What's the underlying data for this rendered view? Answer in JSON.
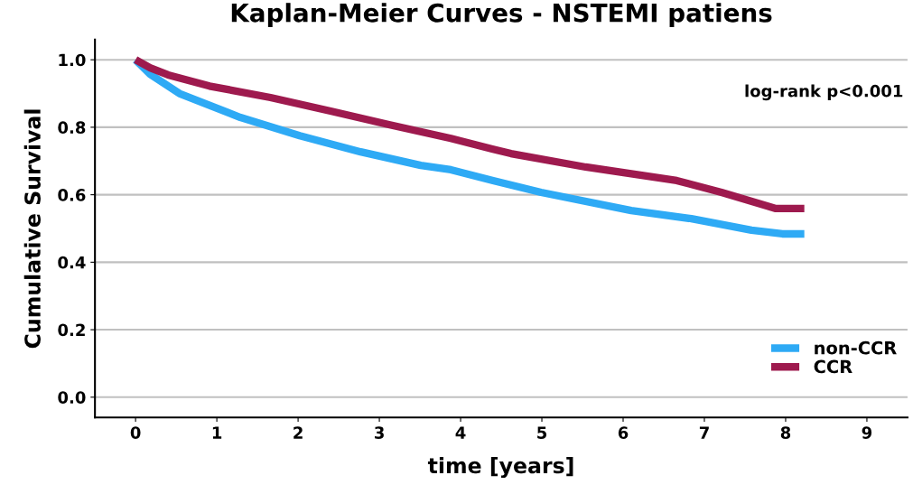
{
  "chart_data": {
    "type": "line",
    "title": "Kaplan-Meier Curves - NSTEMI patiens",
    "xlabel": "time [years]",
    "ylabel": "Cumulative Survival",
    "annotations": [
      "log-rank p<0.001"
    ],
    "series": [
      {
        "name": "non-CCR",
        "color": "#2eaaf5",
        "x": [
          0,
          0.18,
          0.54,
          1.29,
          2.02,
          2.77,
          3.51,
          3.88,
          4.4,
          4.99,
          6.1,
          6.84,
          7.58,
          7.96,
          8.23
        ],
        "values": [
          1.0,
          0.957,
          0.9,
          0.829,
          0.775,
          0.727,
          0.687,
          0.674,
          0.642,
          0.607,
          0.553,
          0.529,
          0.495,
          0.484,
          0.484
        ]
      },
      {
        "name": "CCR",
        "color": "#9e1a4e",
        "x": [
          0,
          0.18,
          0.4,
          0.91,
          1.66,
          2.4,
          3.13,
          3.88,
          4.4,
          4.62,
          5.54,
          6.66,
          7.21,
          7.77,
          7.88,
          8.23
        ],
        "values": [
          1.0,
          0.976,
          0.955,
          0.922,
          0.888,
          0.848,
          0.807,
          0.767,
          0.735,
          0.722,
          0.682,
          0.642,
          0.607,
          0.567,
          0.559,
          0.559
        ]
      }
    ],
    "xlim": [
      -0.5,
      9.5
    ],
    "xticks": [
      0,
      1,
      2,
      3,
      4,
      5,
      6,
      7,
      8,
      9
    ],
    "ylim": [
      -0.06,
      1.06
    ],
    "yticks": [
      {
        "value": 0.0,
        "label": "0.0"
      },
      {
        "value": 0.2,
        "label": "0.2"
      },
      {
        "value": 0.4,
        "label": "0.4"
      },
      {
        "value": 0.6,
        "label": "0.6"
      },
      {
        "value": 0.8,
        "label": "0.8"
      },
      {
        "value": 1.0,
        "label": "1.0"
      }
    ],
    "grid": "y",
    "legend": "bottom right",
    "marker": "none",
    "line_style": "solid"
  }
}
